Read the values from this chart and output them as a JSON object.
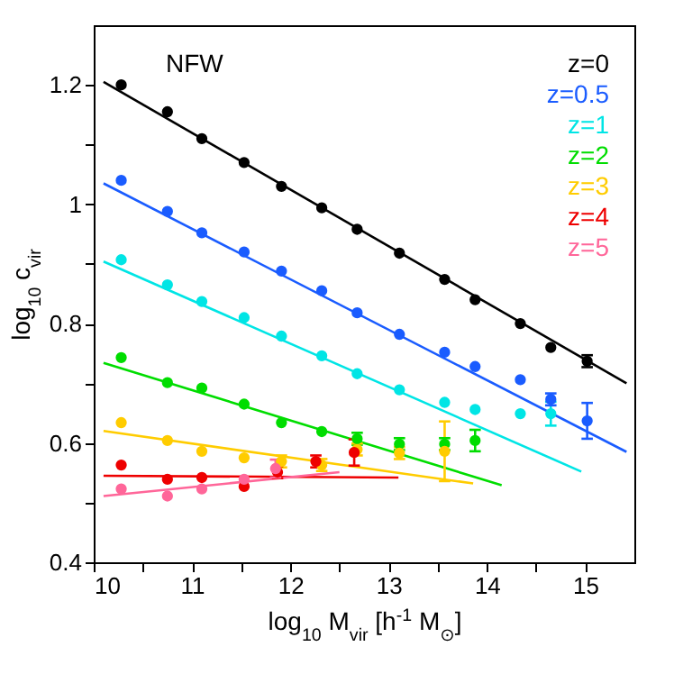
{
  "chart_data": {
    "type": "scatter",
    "xlabel": "log$_{10}$ M$_{vir}$ [h$^{-1}$ M$_{⊙}$]",
    "ylabel": "log$_{10}$ c$_{vir}$",
    "annotations": [
      "NFW"
    ],
    "legend": "top right",
    "marker": "circle",
    "xlim": [
      10,
      15.5
    ],
    "ylim": [
      0.4,
      1.3
    ],
    "xticks": [
      10,
      {
        "value": 10.5,
        "label": null
      },
      11,
      {
        "value": 11.5,
        "label": null
      },
      12,
      {
        "value": 12.5,
        "label": null
      },
      13,
      {
        "value": 13.5,
        "label": null
      },
      14,
      {
        "value": 14.5,
        "label": null
      },
      15
    ],
    "yticks": [
      0.4,
      {
        "value": 0.5,
        "label": null
      },
      0.6,
      {
        "value": 0.7,
        "label": null
      },
      0.8,
      {
        "value": 0.9,
        "label": null
      },
      1,
      {
        "value": 1.1,
        "label": null
      },
      1.2
    ],
    "series": [
      {
        "name": "z=0",
        "color": "#000000",
        "x": [
          10.28,
          10.75,
          11.1,
          11.53,
          11.91,
          12.32,
          12.68,
          13.11,
          13.57,
          13.88,
          14.34,
          14.65,
          15.02
        ],
        "values": [
          1.2,
          1.155,
          1.11,
          1.07,
          1.03,
          0.994,
          0.958,
          0.918,
          0.874,
          0.84,
          0.8,
          0.76,
          0.737
        ],
        "errors": [
          null,
          null,
          null,
          null,
          null,
          null,
          null,
          null,
          null,
          null,
          null,
          null,
          0.01
        ]
      },
      {
        "name": "z=0.5",
        "color": "#1a5cff",
        "x": [
          10.28,
          10.75,
          11.1,
          11.53,
          11.91,
          12.32,
          12.68,
          13.11,
          13.57,
          13.88,
          14.34,
          14.65,
          15.02
        ],
        "values": [
          1.04,
          0.988,
          0.952,
          0.92,
          0.888,
          0.855,
          0.818,
          0.782,
          0.752,
          0.728,
          0.706,
          0.673,
          0.637
        ],
        "errors": [
          null,
          null,
          null,
          null,
          null,
          null,
          null,
          null,
          null,
          null,
          null,
          0.01,
          0.03
        ]
      },
      {
        "name": "z=1",
        "color": "#00e5e5",
        "x": [
          10.28,
          10.75,
          11.1,
          11.53,
          11.91,
          12.32,
          12.68,
          13.11,
          13.57,
          13.88,
          14.34,
          14.65
        ],
        "values": [
          0.907,
          0.865,
          0.837,
          0.81,
          0.779,
          0.746,
          0.716,
          0.689,
          0.668,
          0.656,
          0.649,
          0.649
        ],
        "errors": [
          null,
          null,
          null,
          null,
          null,
          null,
          null,
          null,
          null,
          null,
          null,
          0.02
        ]
      },
      {
        "name": "z=2",
        "color": "#00dd00",
        "x": [
          10.28,
          10.75,
          11.1,
          11.53,
          11.91,
          12.32,
          12.68,
          13.11,
          13.57,
          13.88
        ],
        "values": [
          0.743,
          0.701,
          0.692,
          0.665,
          0.634,
          0.619,
          0.607,
          0.598,
          0.598,
          0.604
        ],
        "errors": [
          null,
          null,
          null,
          null,
          null,
          null,
          0.01,
          0.01,
          0.01,
          0.018
        ]
      },
      {
        "name": "z=3",
        "color": "#ffcc00",
        "x": [
          10.28,
          10.75,
          11.1,
          11.53,
          11.91,
          12.32,
          12.68,
          13.11,
          13.57
        ],
        "values": [
          0.634,
          0.604,
          0.586,
          0.575,
          0.569,
          0.563,
          0.589,
          0.583,
          0.586
        ],
        "errors": [
          null,
          null,
          null,
          null,
          0.01,
          0.01,
          0.01,
          0.01,
          0.05
        ]
      },
      {
        "name": "z=4",
        "color": "#ee0000",
        "x": [
          10.28,
          10.75,
          11.1,
          11.53,
          11.87,
          12.26,
          12.65
        ],
        "values": [
          0.563,
          0.539,
          0.542,
          0.527,
          0.551,
          0.569,
          0.584
        ],
        "errors": [
          null,
          null,
          null,
          null,
          0.01,
          0.01,
          0.022
        ]
      },
      {
        "name": "z=5",
        "color": "#ff6699",
        "x": [
          10.28,
          10.75,
          11.1,
          11.53,
          11.85
        ],
        "values": [
          0.523,
          0.511,
          0.523,
          0.539,
          0.557
        ],
        "errors": [
          null,
          null,
          null,
          null,
          0.015
        ]
      },
      {
        "type": "line",
        "color": "#000000",
        "x": [
          10.1,
          15.42
        ],
        "values": [
          1.205,
          0.7
        ],
        "marker": "none"
      },
      {
        "type": "line",
        "color": "#1a5cff",
        "x": [
          10.1,
          15.42
        ],
        "values": [
          1.035,
          0.585
        ],
        "marker": "none"
      },
      {
        "type": "line",
        "color": "#00e5e5",
        "x": [
          10.1,
          14.96
        ],
        "values": [
          0.904,
          0.552
        ],
        "marker": "none"
      },
      {
        "type": "line",
        "color": "#00dd00",
        "x": [
          10.1,
          14.15
        ],
        "values": [
          0.734,
          0.529
        ],
        "marker": "none"
      },
      {
        "type": "line",
        "color": "#ffcc00",
        "x": [
          10.1,
          13.86
        ],
        "values": [
          0.62,
          0.532
        ],
        "marker": "none"
      },
      {
        "type": "line",
        "color": "#ee0000",
        "x": [
          10.1,
          13.1
        ],
        "values": [
          0.545,
          0.542
        ],
        "marker": "none"
      },
      {
        "type": "line",
        "color": "#ff6699",
        "x": [
          10.1,
          12.5
        ],
        "values": [
          0.511,
          0.551
        ],
        "marker": "none"
      }
    ]
  }
}
